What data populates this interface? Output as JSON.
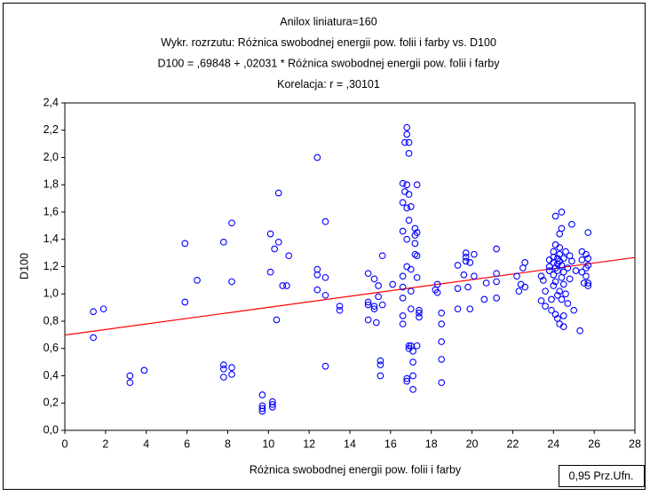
{
  "chart_data": {
    "type": "scatter",
    "title_lines": [
      "Anilox liniatura=160",
      "Wykr. rozrzutu: Różnica swobodnej energii pow. folii i farby vs. D100",
      "D100    = ,69848 + ,02031 * Różnica swobodnej energii pow. folii i farby",
      "Korelacja: r =   ,30101"
    ],
    "xlabel": "Różnica swobodnej energii pow. folii i farby",
    "ylabel": "D100",
    "legend_label": "0,95 Prz.Ufn.",
    "color": "#0000ff",
    "fit": {
      "intercept": 0.69848,
      "slope": 0.02031,
      "color": "#ff0000"
    },
    "xlim": [
      0,
      28
    ],
    "ylim": [
      0,
      2.4
    ],
    "xticks": [
      0,
      2,
      4,
      6,
      8,
      10,
      12,
      14,
      16,
      18,
      20,
      22,
      24,
      26,
      28
    ],
    "yticks": [
      {
        "value": 0,
        "label": "0,0"
      },
      {
        "value": 0.2,
        "label": "0,2"
      },
      {
        "value": 0.4,
        "label": "0,4"
      },
      {
        "value": 0.6,
        "label": "0,6"
      },
      {
        "value": 0.8,
        "label": "0,8"
      },
      {
        "value": 1.0,
        "label": "1,0"
      },
      {
        "value": 1.2,
        "label": "1,2"
      },
      {
        "value": 1.4,
        "label": "1,4"
      },
      {
        "value": 1.6,
        "label": "1,6"
      },
      {
        "value": 1.8,
        "label": "1,8"
      },
      {
        "value": 2.0,
        "label": "2,0"
      },
      {
        "value": 2.2,
        "label": "2,2"
      },
      {
        "value": 2.4,
        "label": "2,4"
      }
    ],
    "x": [
      1.4,
      1.4,
      1.9,
      3.2,
      3.2,
      3.9,
      5.9,
      5.9,
      6.5,
      7.8,
      7.8,
      7.8,
      7.8,
      8.2,
      8.2,
      8.2,
      8.2,
      9.7,
      9.7,
      9.7,
      9.7,
      10.2,
      10.2,
      10.2,
      10.1,
      10.1,
      10.4,
      10.3,
      10.5,
      10.5,
      10.7,
      10.9,
      11.0,
      12.4,
      12.4,
      12.4,
      12.4,
      12.8,
      12.8,
      12.8,
      12.8,
      13.5,
      13.5,
      14.9,
      14.9,
      14.9,
      14.9,
      15.2,
      15.2,
      15.2,
      15.3,
      15.4,
      15.4,
      15.5,
      15.5,
      15.5,
      15.6,
      15.6,
      16.1,
      16.6,
      16.6,
      16.6,
      16.6,
      16.6,
      16.6,
      16.6,
      16.6,
      16.7,
      16.7,
      16.8,
      16.8,
      16.9,
      16.8,
      16.9,
      16.8,
      16.8,
      16.8,
      16.9,
      16.9,
      16.9,
      16.9,
      16.8,
      16.8,
      17.0,
      17.0,
      17.0,
      17.0,
      17.0,
      17.1,
      17.1,
      17.1,
      17.1,
      17.2,
      17.2,
      17.2,
      17.2,
      17.3,
      17.3,
      17.3,
      17.3,
      17.4,
      17.4,
      17.4,
      17.3,
      18.2,
      18.3,
      18.3,
      18.5,
      18.5,
      18.5,
      18.5,
      18.5,
      19.3,
      19.3,
      19.3,
      19.6,
      19.7,
      19.7,
      19.7,
      19.8,
      19.9,
      19.9,
      20.1,
      20.1,
      20.6,
      20.7,
      21.2,
      21.2,
      21.2,
      21.2,
      22.2,
      22.3,
      22.4,
      22.5,
      22.6,
      22.6,
      23.4,
      23.4,
      23.5,
      23.6,
      23.6,
      23.8,
      23.8,
      23.8,
      23.9,
      23.9,
      24.0,
      24.0,
      24.0,
      24.0,
      24.0,
      24.1,
      24.1,
      24.1,
      24.1,
      24.1,
      24.2,
      24.2,
      24.2,
      24.2,
      24.2,
      24.3,
      24.3,
      24.3,
      24.3,
      24.3,
      24.3,
      24.4,
      24.4,
      24.4,
      24.4,
      24.4,
      24.5,
      24.5,
      24.5,
      24.5,
      24.5,
      24.6,
      24.6,
      24.7,
      24.7,
      24.8,
      24.8,
      24.9,
      24.9,
      25.0,
      25.1,
      25.3,
      25.4,
      25.4,
      25.4,
      25.5,
      25.6,
      25.6,
      25.6,
      25.7,
      25.7,
      25.7,
      25.7,
      25.7
    ],
    "values": [
      0.87,
      0.68,
      0.89,
      0.4,
      0.35,
      0.44,
      1.37,
      0.94,
      1.1,
      1.38,
      0.48,
      0.45,
      0.39,
      1.52,
      1.09,
      0.46,
      0.41,
      0.26,
      0.18,
      0.16,
      0.14,
      0.21,
      0.19,
      0.17,
      1.44,
      1.16,
      0.81,
      1.33,
      1.74,
      1.38,
      1.06,
      1.06,
      1.28,
      2.0,
      1.18,
      1.14,
      1.03,
      1.53,
      1.12,
      0.99,
      0.47,
      0.91,
      0.88,
      1.15,
      0.94,
      0.92,
      0.81,
      1.11,
      0.91,
      0.89,
      0.79,
      1.06,
      0.98,
      0.51,
      0.48,
      0.4,
      1.28,
      0.92,
      1.07,
      1.81,
      1.67,
      1.46,
      1.13,
      1.05,
      0.97,
      0.84,
      0.78,
      2.11,
      1.75,
      2.22,
      2.17,
      2.11,
      1.8,
      2.03,
      1.63,
      1.4,
      1.2,
      1.73,
      1.54,
      0.62,
      0.6,
      0.38,
      0.36,
      1.64,
      1.18,
      1.02,
      0.89,
      0.62,
      0.58,
      0.5,
      0.4,
      0.3,
      1.48,
      1.43,
      1.37,
      1.29,
      1.28,
      1.45,
      1.8,
      1.12,
      0.88,
      0.86,
      0.83,
      0.62,
      1.03,
      1.07,
      1.01,
      0.86,
      0.78,
      0.65,
      0.52,
      0.35,
      1.21,
      1.04,
      0.89,
      1.14,
      1.3,
      1.24,
      1.27,
      1.05,
      1.23,
      0.89,
      1.29,
      1.13,
      0.96,
      1.08,
      1.33,
      1.15,
      1.09,
      0.97,
      1.13,
      1.02,
      1.07,
      1.19,
      1.05,
      1.23,
      1.13,
      0.95,
      1.1,
      0.91,
      1.02,
      1.25,
      1.2,
      1.17,
      0.96,
      0.88,
      1.31,
      1.27,
      1.23,
      1.14,
      1.06,
      1.57,
      1.36,
      1.19,
      1.09,
      0.85,
      1.26,
      1.22,
      1.17,
      0.99,
      0.82,
      1.44,
      1.34,
      1.29,
      1.24,
      1.02,
      0.78,
      1.6,
      1.48,
      1.21,
      1.12,
      0.96,
      1.26,
      1.16,
      1.07,
      0.84,
      0.76,
      1.31,
      1.0,
      1.19,
      0.93,
      1.28,
      1.11,
      1.51,
      1.24,
      0.88,
      1.17,
      0.73,
      1.31,
      1.25,
      1.16,
      1.08,
      1.29,
      1.19,
      1.13,
      1.45,
      1.26,
      1.08,
      1.06,
      1.21
    ]
  }
}
